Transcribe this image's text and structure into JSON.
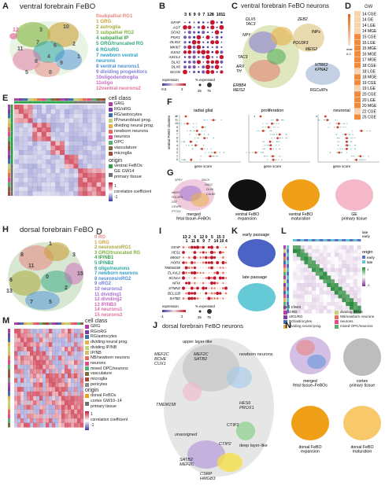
{
  "panels": {
    "A": {
      "letter": "A",
      "title": "ventral forebrain FeBO",
      "clusters": [
        {
          "id": "0",
          "label": "subpallial RG1",
          "color": "#e8867f"
        },
        {
          "id": "1",
          "label": "GRG",
          "color": "#c9a23a"
        },
        {
          "id": "2",
          "label": "astroglia",
          "color": "#a7a93a"
        },
        {
          "id": "3",
          "label": "subpallial RG2",
          "color": "#7fb23c"
        },
        {
          "id": "4",
          "label": "subpallial IP",
          "color": "#3aa64a"
        },
        {
          "id": "5",
          "label": "GRG/truncated RG",
          "color": "#2fa77d"
        },
        {
          "id": "6",
          "label": "RG/oRG",
          "color": "#2ba5a5"
        },
        {
          "id": "7",
          "label": "newborn ventral neurons",
          "color": "#2d9fc8"
        },
        {
          "id": "8",
          "label": "ventral neurons1",
          "color": "#4a8fd8"
        },
        {
          "id": "9",
          "label": "dividing progenitors",
          "color": "#7b7ed8"
        },
        {
          "id": "10",
          "label": "oligodendroglia",
          "color": "#a66fd0"
        },
        {
          "id": "11",
          "label": "oligo",
          "color": "#cf68b8"
        },
        {
          "id": "12",
          "label": "ventral neurons2",
          "color": "#e070a0"
        }
      ],
      "umap_labels": [
        "0",
        "1",
        "2",
        "3",
        "4",
        "5",
        "6",
        "7",
        "8",
        "9",
        "10",
        "11",
        "12"
      ]
    },
    "B": {
      "letter": "B",
      "top_numbers": [
        "3",
        "6",
        "9",
        "0",
        "7",
        "12",
        "8",
        "10",
        "11"
      ],
      "genes": [
        "GFAP",
        "AGT",
        "SOX2",
        "PGK1",
        "OLIG2",
        "MKI67",
        "GSX2",
        "ASCL1",
        "DLX2",
        "DLX6",
        "SCGN"
      ],
      "legend_expression": "expression",
      "legend_pct": "% expressed",
      "scale_min": "-0.5",
      "scale_mid": "2",
      "pct_ticks": [
        "25",
        "75"
      ]
    },
    "C": {
      "letter": "C",
      "title": "ventral forebrain FeBO neurons",
      "annotations": [
        "DLX5",
        "TAC3",
        "ZEB2",
        "NPY",
        "INPs",
        "POU3F3",
        "MEIS2",
        "TAC3",
        "ARX",
        "TH",
        "NTRK2",
        "KPNA2",
        "RGCs/IPs",
        "ERBB4",
        "MEIS2"
      ]
    },
    "D": {
      "letter": "D",
      "header": "GW",
      "rows": [
        "14 CGE",
        "14 GE",
        "14 LGE",
        "14 MGE",
        "15 CGE",
        "15 LGE",
        "15 MGE",
        "16 MGE",
        "17 MGE",
        "18 CGE",
        "18 LGE",
        "18 MGE",
        "19 CGE",
        "19 LGE",
        "20 CGE",
        "20 LGE",
        "20 MGE",
        "22 CGE",
        "25 CGE"
      ],
      "scale_label": "max",
      "scale_min": "0.2"
    },
    "E": {
      "letter": "E",
      "legend_cellclass_title": "cell class",
      "cell_classes": [
        {
          "label": "GRG",
          "color": "#b13fa6"
        },
        {
          "label": "RG/oRG",
          "color": "#7b3fa7"
        },
        {
          "label": "RG/astrocytes",
          "color": "#3e6fb0"
        },
        {
          "label": "IP/neuroblast prog.",
          "color": "#c2d27a"
        },
        {
          "label": "dividing neural prog.",
          "color": "#e8b04a"
        },
        {
          "label": "newborn neurons",
          "color": "#e56b5a"
        },
        {
          "label": "neurons",
          "color": "#e8488a"
        },
        {
          "label": "OPC",
          "color": "#56b06e"
        },
        {
          "label": "vasculature",
          "color": "#7d6a3d"
        },
        {
          "label": "microglia",
          "color": "#a04a3a"
        }
      ],
      "origin_title": "origin",
      "origins": [
        {
          "label": "ventral FeBOs",
          "color": "#2e9e48"
        },
        {
          "label": "GE GW14\nprimary tissue",
          "color": "#6f6f6f"
        }
      ],
      "corr_label": "correlation coefficient",
      "corr_max": "1",
      "corr_min": "-1"
    },
    "F": {
      "letter": "F",
      "ylabel": "ventral FeBO clusters",
      "subtitles": [
        "radial glial",
        "proliferation",
        "neuronal"
      ],
      "xlabel": "gene score",
      "y_clusters": [
        "12",
        "11",
        "10",
        "9",
        "8",
        "7",
        "6",
        "5",
        "4",
        "3",
        "2",
        "1",
        "0"
      ]
    },
    "G": {
      "letter": "G",
      "subtitles": [
        "merged\nfetal tissue–FeBOs",
        "ventral FeBO\nexpansion",
        "ventral FeBO\nmaturation",
        "GE\nprimary tissue"
      ],
      "genes": [
        "SPRY",
        "SNCH",
        "GAD2",
        "DLX6",
        "CALB2",
        "MKI67",
        "POU3F3",
        "SST",
        "CENPE",
        "PTTG1"
      ]
    },
    "H": {
      "letter": "H",
      "title": "dorsal forebrain FeBO",
      "clusters": [
        {
          "id": "0",
          "label": "RG",
          "color": "#e8867f"
        },
        {
          "id": "1",
          "label": "GRG",
          "color": "#c9a23a"
        },
        {
          "id": "2",
          "label": "neurons/oRG1",
          "color": "#a7a93a"
        },
        {
          "id": "3",
          "label": "GRG/truncated RG",
          "color": "#7fb23c"
        },
        {
          "id": "4",
          "label": "IP/NB1",
          "color": "#3aa64a"
        },
        {
          "id": "5",
          "label": "IP/NB2",
          "color": "#2fa77d"
        },
        {
          "id": "6",
          "label": "oligo/neurons",
          "color": "#2ba5a5"
        },
        {
          "id": "7",
          "label": "newborn neurons",
          "color": "#2d9fc8"
        },
        {
          "id": "8",
          "label": "neurons/oRG2",
          "color": "#4a8fd8"
        },
        {
          "id": "9",
          "label": "oRG2",
          "color": "#6e82d8"
        },
        {
          "id": "10",
          "label": "neurons2",
          "color": "#8d77d6"
        },
        {
          "id": "11",
          "label": "dividing1",
          "color": "#a66fd0"
        },
        {
          "id": "12",
          "label": "dividing2",
          "color": "#bb6ac4"
        },
        {
          "id": "13",
          "label": "IP/NB3",
          "color": "#cf68b8"
        },
        {
          "id": "14",
          "label": "neurons1",
          "color": "#dc6aa8"
        },
        {
          "id": "15",
          "label": "neurons3",
          "color": "#e070a0"
        }
      ],
      "umap_labels": [
        "0",
        "1",
        "2",
        "3",
        "4",
        "5",
        "6",
        "7",
        "8",
        "9",
        "10",
        "11",
        "12",
        "13",
        "14",
        "15"
      ]
    },
    "I": {
      "letter": "I",
      "top_numbers": [
        "13",
        "1",
        "2",
        "11",
        "6",
        "8",
        "12",
        "9",
        "0",
        "7",
        "5",
        "14",
        "15",
        "10",
        "3",
        "4"
      ],
      "genes": [
        "GFAP",
        "HES1",
        "MKI67",
        "HOPX",
        "TMEM158",
        "ELAVL2",
        "SCN1A",
        "NFIX",
        "STMN2",
        "BCL11B",
        "SATB2"
      ],
      "legend_expression": "expression",
      "legend_pct": "% expressed",
      "scale_min": "-1",
      "scale_mid": "2",
      "pct_ticks": [
        "25",
        "75"
      ]
    },
    "K": {
      "letter": "K",
      "labels": [
        "early passage",
        "late passage"
      ]
    },
    "L": {
      "letter": "L",
      "top_labels": [
        "late",
        "early"
      ],
      "origin_title": "origin",
      "origins": [
        {
          "label": "early",
          "color": "#5b6fc6"
        },
        {
          "label": "late",
          "color": "#5fc7d0"
        }
      ],
      "corr_label": "correlation coefficient",
      "corr_max": "1",
      "corr_min": "-1",
      "cellclass_title": "cell class",
      "cell_classes": [
        {
          "label": "GRG",
          "color": "#b13fa6"
        },
        {
          "label": "dividing IP/NB",
          "color": "#c2d27a"
        },
        {
          "label": "oRG/RG",
          "color": "#7b3fa7"
        },
        {
          "label": "NB/newborn neurons",
          "color": "#e56b5a"
        },
        {
          "label": "RG/astrocytes",
          "color": "#3e6fb0"
        },
        {
          "label": "neurons",
          "color": "#e8488a"
        },
        {
          "label": "dividing neural prog.",
          "color": "#e8b04a"
        },
        {
          "label": "mixed OPC/neurons",
          "color": "#56b06e"
        }
      ]
    },
    "M": {
      "letter": "M",
      "legend_cellclass_title": "cell class",
      "cell_classes": [
        {
          "label": "GRG",
          "color": "#b13fa6"
        },
        {
          "label": "RG/oRG",
          "color": "#7b3fa7"
        },
        {
          "label": "RG/astrocytes",
          "color": "#3e6fb0"
        },
        {
          "label": "dividing neural prog.",
          "color": "#e8b04a"
        },
        {
          "label": "dividing IP/NB",
          "color": "#c2d27a"
        },
        {
          "label": "IP/NB",
          "color": "#d8c060"
        },
        {
          "label": "NB/newborn neurons",
          "color": "#e56b5a"
        },
        {
          "label": "neurons",
          "color": "#e8488a"
        },
        {
          "label": "mixed OPC/neurons",
          "color": "#56b06e"
        },
        {
          "label": "vasculature",
          "color": "#7d6a3d"
        },
        {
          "label": "microglia",
          "color": "#a04a3a"
        },
        {
          "label": "pericytes",
          "color": "#8a8a8a"
        }
      ],
      "origin_title": "origin",
      "origins": [
        {
          "label": "dorsal FeBOs",
          "color": "#e8a21e"
        },
        {
          "label": "cortex GW10–14\nprimary tissue",
          "color": "#6f6f6f"
        }
      ],
      "corr_label": "correlation coefficient",
      "corr_max": "1",
      "corr_min": "-1"
    },
    "J": {
      "letter": "J",
      "title": "dorsal forebrain FeBO neurons",
      "annotations": [
        "upper layer-like",
        "MEF2C",
        "BCHE",
        "CUX1",
        "MEF2C",
        "SATB2",
        "newborn neurons",
        "TMEM158",
        "HES6",
        "PROX1",
        "unassigned",
        "CTIP2",
        "deep layer-like",
        "SATB2",
        "MEF2C",
        "CTIP2",
        "CSRP",
        "HMGB3"
      ]
    },
    "N": {
      "letter": "N",
      "subtitles": [
        "merged\nfetal tissue–FeBOs",
        "cortex\nprimary tissue",
        "dorsal FeBO\nexpansion",
        "dorsal FeBO\nmaturation"
      ]
    }
  }
}
